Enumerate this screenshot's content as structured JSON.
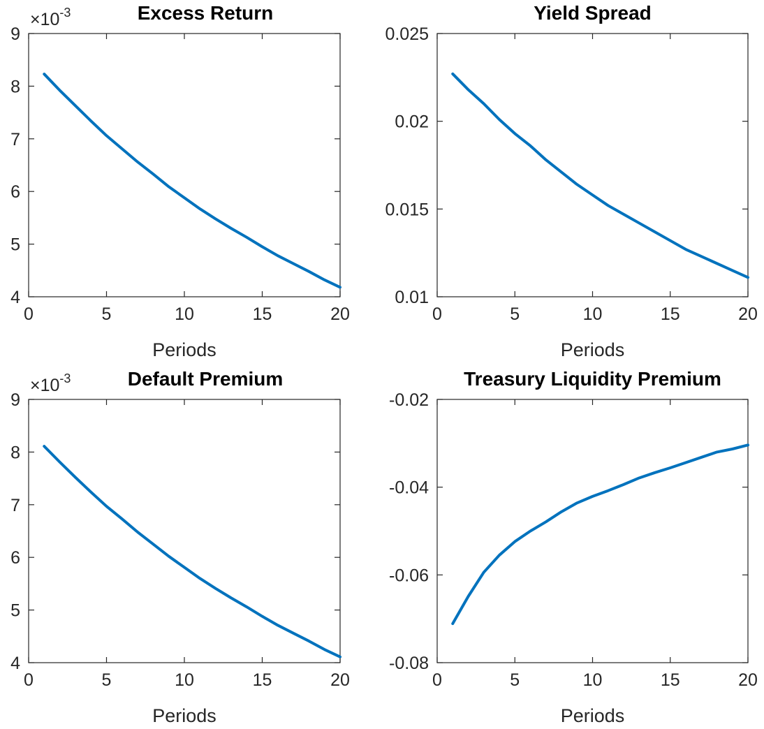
{
  "colors": {
    "line": "#0072BD",
    "axis": "#262626",
    "background": "#ffffff"
  },
  "chart_data": [
    {
      "type": "line",
      "title": "Excess Return",
      "xlabel": "Periods",
      "ylabel": "",
      "exponent_label": "×10",
      "exponent_power": "-3",
      "xlim": [
        0,
        20
      ],
      "ylim": [
        0.004,
        0.009
      ],
      "xticks": [
        0,
        5,
        10,
        15,
        20
      ],
      "xtick_labels": [
        "0",
        "5",
        "10",
        "15",
        "20"
      ],
      "yticks": [
        0.004,
        0.005,
        0.006,
        0.007,
        0.008,
        0.009
      ],
      "ytick_labels": [
        "4",
        "5",
        "6",
        "7",
        "8",
        "9"
      ],
      "grid": false,
      "x": [
        1,
        2,
        3,
        4,
        5,
        6,
        7,
        8,
        9,
        10,
        11,
        12,
        13,
        14,
        15,
        16,
        17,
        18,
        19,
        20
      ],
      "series": [
        {
          "values": [
            0.00823,
            0.00792,
            0.00763,
            0.00734,
            0.00706,
            0.00681,
            0.00656,
            0.00633,
            0.00609,
            0.00588,
            0.00567,
            0.00548,
            0.0053,
            0.00513,
            0.00495,
            0.00478,
            0.00463,
            0.00448,
            0.00432,
            0.00418
          ]
        }
      ]
    },
    {
      "type": "line",
      "title": "Yield Spread",
      "xlabel": "Periods",
      "ylabel": "",
      "xlim": [
        0,
        20
      ],
      "ylim": [
        0.01,
        0.025
      ],
      "xticks": [
        0,
        5,
        10,
        15,
        20
      ],
      "xtick_labels": [
        "0",
        "5",
        "10",
        "15",
        "20"
      ],
      "yticks": [
        0.01,
        0.015,
        0.02,
        0.025
      ],
      "ytick_labels": [
        "0.01",
        "0.015",
        "0.02",
        "0.025"
      ],
      "grid": false,
      "x": [
        1,
        2,
        3,
        4,
        5,
        6,
        7,
        8,
        9,
        10,
        11,
        12,
        13,
        14,
        15,
        16,
        17,
        18,
        19,
        20
      ],
      "series": [
        {
          "values": [
            0.0227,
            0.0218,
            0.021,
            0.0201,
            0.0193,
            0.0186,
            0.0178,
            0.0171,
            0.0164,
            0.0158,
            0.0152,
            0.0147,
            0.0142,
            0.0137,
            0.0132,
            0.0127,
            0.0123,
            0.0119,
            0.0115,
            0.0111
          ]
        }
      ]
    },
    {
      "type": "line",
      "title": "Default Premium",
      "xlabel": "Periods",
      "ylabel": "",
      "exponent_label": "×10",
      "exponent_power": "-3",
      "xlim": [
        0,
        20
      ],
      "ylim": [
        0.004,
        0.009
      ],
      "xticks": [
        0,
        5,
        10,
        15,
        20
      ],
      "xtick_labels": [
        "0",
        "5",
        "10",
        "15",
        "20"
      ],
      "yticks": [
        0.004,
        0.005,
        0.006,
        0.007,
        0.008,
        0.009
      ],
      "ytick_labels": [
        "4",
        "5",
        "6",
        "7",
        "8",
        "9"
      ],
      "grid": false,
      "x": [
        1,
        2,
        3,
        4,
        5,
        6,
        7,
        8,
        9,
        10,
        11,
        12,
        13,
        14,
        15,
        16,
        17,
        18,
        19,
        20
      ],
      "series": [
        {
          "values": [
            0.00811,
            0.00781,
            0.00752,
            0.00724,
            0.00697,
            0.00673,
            0.00648,
            0.00625,
            0.00602,
            0.00581,
            0.0056,
            0.00541,
            0.00523,
            0.00506,
            0.00488,
            0.00471,
            0.00456,
            0.00441,
            0.00425,
            0.00411
          ]
        }
      ]
    },
    {
      "type": "line",
      "title": "Treasury Liquidity Premium",
      "xlabel": "Periods",
      "ylabel": "",
      "xlim": [
        0,
        20
      ],
      "ylim": [
        -0.08,
        -0.02
      ],
      "xticks": [
        0,
        5,
        10,
        15,
        20
      ],
      "xtick_labels": [
        "0",
        "5",
        "10",
        "15",
        "20"
      ],
      "yticks": [
        -0.08,
        -0.06,
        -0.04,
        -0.02
      ],
      "ytick_labels": [
        "-0.08",
        "-0.06",
        "-0.04",
        "-0.02"
      ],
      "grid": false,
      "x": [
        1,
        2,
        3,
        4,
        5,
        6,
        7,
        8,
        9,
        10,
        11,
        12,
        13,
        14,
        15,
        16,
        17,
        18,
        19,
        20
      ],
      "series": [
        {
          "values": [
            -0.0711,
            -0.0649,
            -0.0594,
            -0.0555,
            -0.0524,
            -0.05,
            -0.0479,
            -0.0456,
            -0.0436,
            -0.0421,
            -0.0408,
            -0.0394,
            -0.0379,
            -0.0367,
            -0.0356,
            -0.0344,
            -0.0332,
            -0.032,
            -0.0313,
            -0.0304
          ]
        }
      ]
    }
  ]
}
